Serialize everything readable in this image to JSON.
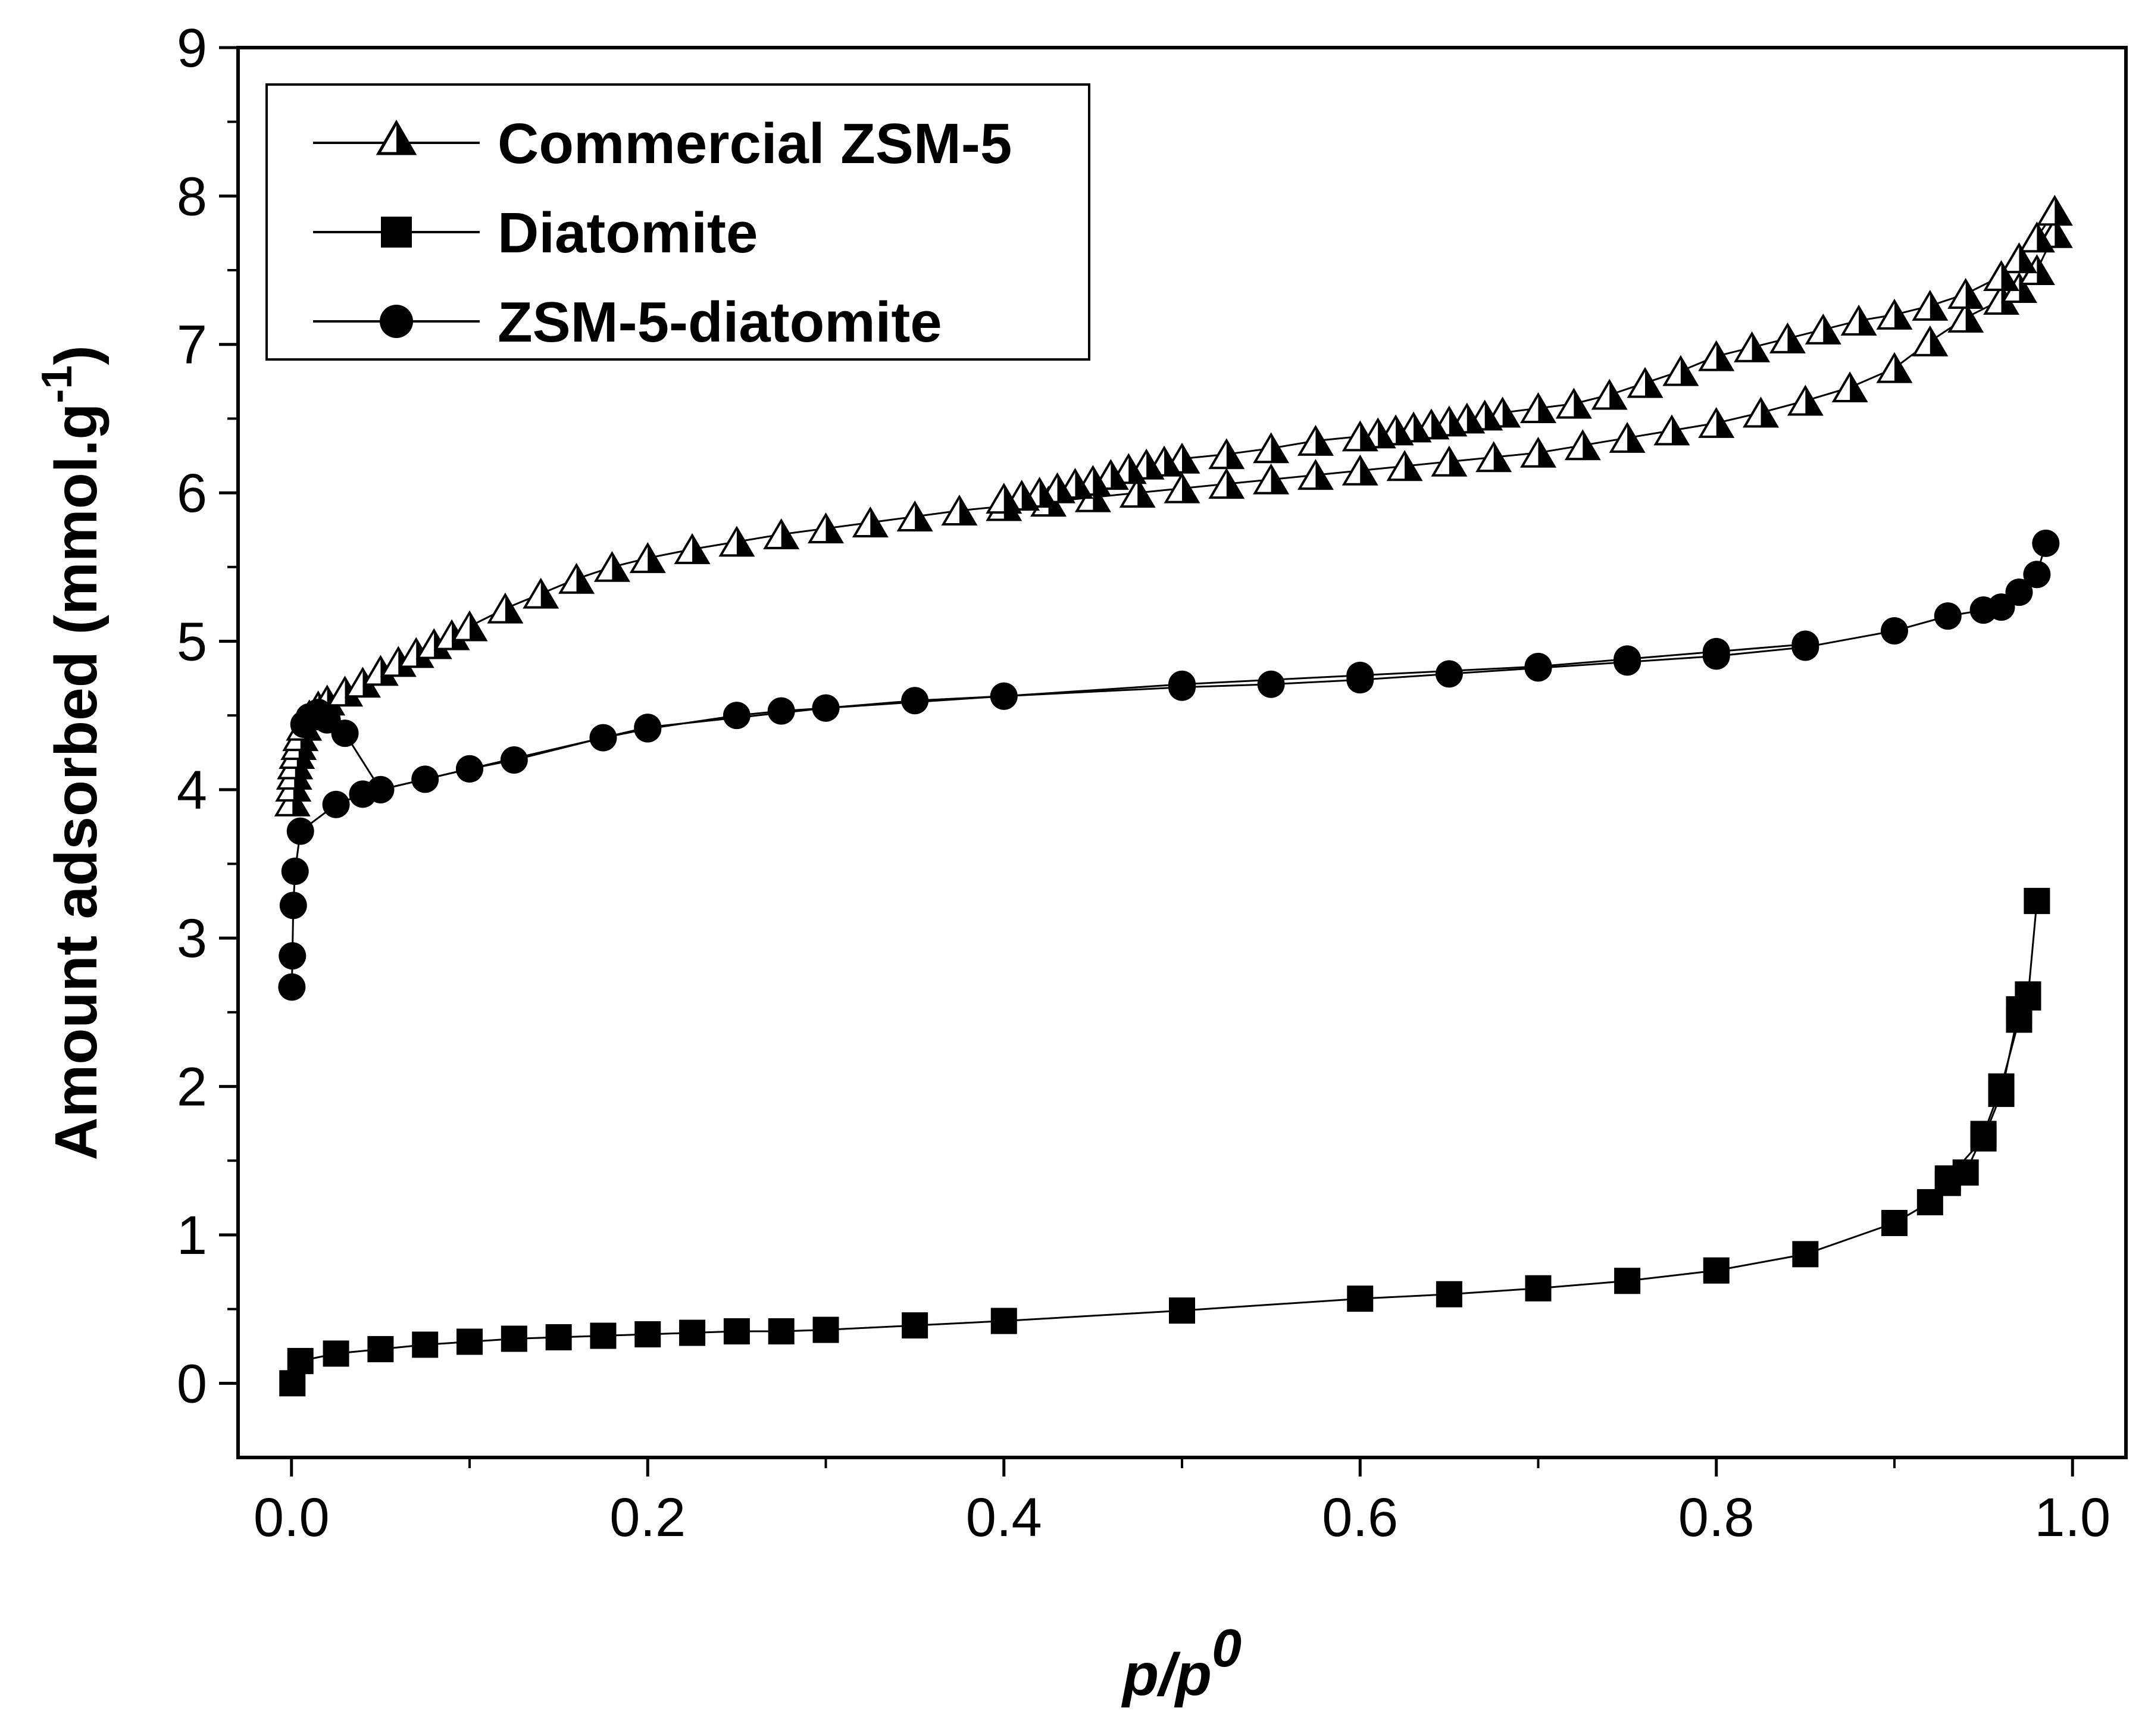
{
  "chart_data": {
    "type": "scatter",
    "title": "",
    "xlabel": "p/p",
    "xlabel_superscript": "0",
    "ylabel": "Amount adsorbed (mmol.g",
    "ylabel_superscript": "-1",
    "ylabel_close": ")",
    "xlim": [
      -0.03,
      1.03
    ],
    "ylim": [
      -0.5,
      9
    ],
    "xticks": [
      "0.0",
      "0.2",
      "0.4",
      "0.6",
      "0.8",
      "1.0"
    ],
    "xtick_values": [
      0.0,
      0.2,
      0.4,
      0.6,
      0.8,
      1.0
    ],
    "yticks": [
      "0",
      "1",
      "2",
      "3",
      "4",
      "5",
      "6",
      "7",
      "8",
      "9"
    ],
    "ytick_values": [
      0,
      1,
      2,
      3,
      4,
      5,
      6,
      7,
      8,
      9
    ],
    "grid": false,
    "legend_position": "top-left",
    "series": [
      {
        "name": "Commercial ZSM-5",
        "marker": "triangle",
        "fill": "half",
        "color": "#000000",
        "adsorption": {
          "x": [
            0.0005,
            0.001,
            0.0015,
            0.002,
            0.003,
            0.004,
            0.005,
            0.007,
            0.01,
            0.015,
            0.02,
            0.03,
            0.04,
            0.05,
            0.06,
            0.07,
            0.08,
            0.09,
            0.1,
            0.12,
            0.14,
            0.16,
            0.18,
            0.2,
            0.225,
            0.25,
            0.275,
            0.3,
            0.325,
            0.35,
            0.375,
            0.4,
            0.425,
            0.45,
            0.475,
            0.5,
            0.525,
            0.55,
            0.575,
            0.6,
            0.625,
            0.65,
            0.675,
            0.7,
            0.725,
            0.75,
            0.775,
            0.8,
            0.825,
            0.85,
            0.875,
            0.9,
            0.92,
            0.94,
            0.96,
            0.97,
            0.98,
            0.99
          ],
          "y": [
            3.92,
            4.02,
            4.1,
            4.17,
            4.24,
            4.3,
            4.36,
            4.43,
            4.5,
            4.56,
            4.6,
            4.66,
            4.72,
            4.8,
            4.86,
            4.92,
            4.98,
            5.04,
            5.1,
            5.22,
            5.32,
            5.42,
            5.5,
            5.56,
            5.62,
            5.67,
            5.72,
            5.76,
            5.8,
            5.84,
            5.88,
            5.91,
            5.94,
            5.97,
            6.0,
            6.03,
            6.06,
            6.09,
            6.12,
            6.15,
            6.18,
            6.21,
            6.24,
            6.27,
            6.32,
            6.37,
            6.42,
            6.47,
            6.54,
            6.62,
            6.71,
            6.84,
            7.02,
            7.18,
            7.3,
            7.38,
            7.5,
            7.75
          ]
        },
        "desorption": {
          "x": [
            0.99,
            0.98,
            0.97,
            0.96,
            0.94,
            0.92,
            0.9,
            0.88,
            0.86,
            0.84,
            0.82,
            0.8,
            0.78,
            0.76,
            0.74,
            0.72,
            0.7,
            0.68,
            0.67,
            0.66,
            0.65,
            0.64,
            0.63,
            0.62,
            0.61,
            0.6,
            0.575,
            0.55,
            0.525,
            0.5,
            0.49,
            0.48,
            0.47,
            0.46,
            0.45,
            0.44,
            0.43,
            0.42,
            0.41,
            0.4
          ],
          "y": [
            7.9,
            7.72,
            7.58,
            7.46,
            7.34,
            7.26,
            7.2,
            7.16,
            7.1,
            7.04,
            6.98,
            6.92,
            6.82,
            6.74,
            6.66,
            6.6,
            6.57,
            6.54,
            6.52,
            6.5,
            6.48,
            6.46,
            6.44,
            6.42,
            6.4,
            6.38,
            6.35,
            6.3,
            6.26,
            6.23,
            6.21,
            6.19,
            6.16,
            6.12,
            6.08,
            6.06,
            6.03,
            6.0,
            5.98,
            5.96
          ]
        }
      },
      {
        "name": "Diatomite",
        "marker": "square",
        "fill": "solid",
        "color": "#000000",
        "adsorption": {
          "x": [
            0.0005,
            0.005,
            0.025,
            0.05,
            0.075,
            0.1,
            0.125,
            0.15,
            0.175,
            0.2,
            0.225,
            0.25,
            0.275,
            0.3,
            0.35,
            0.4,
            0.5,
            0.6,
            0.65,
            0.7,
            0.75,
            0.8,
            0.85,
            0.9,
            0.92,
            0.93,
            0.94,
            0.95,
            0.96,
            0.97,
            0.975,
            0.98
          ],
          "y": [
            0.0,
            0.15,
            0.2,
            0.23,
            0.26,
            0.28,
            0.3,
            0.31,
            0.32,
            0.33,
            0.34,
            0.35,
            0.35,
            0.36,
            0.39,
            0.42,
            0.49,
            0.57,
            0.6,
            0.64,
            0.69,
            0.76,
            0.87,
            1.08,
            1.22,
            1.35,
            1.42,
            1.68,
            2.0,
            2.45,
            2.6,
            3.25
          ]
        },
        "desorption": {
          "x": [
            0.975,
            0.97,
            0.96,
            0.95,
            0.93
          ],
          "y": [
            2.62,
            2.52,
            1.95,
            1.65,
            1.38
          ]
        }
      },
      {
        "name": "ZSM-5-diatomite",
        "marker": "circle",
        "fill": "solid",
        "color": "#000000",
        "adsorption": {
          "x": [
            0.0002,
            0.0005,
            0.001,
            0.002,
            0.005,
            0.025,
            0.04,
            0.05,
            0.075,
            0.1,
            0.125,
            0.175,
            0.2,
            0.25,
            0.275,
            0.3,
            0.35,
            0.4,
            0.5,
            0.55,
            0.6,
            0.65,
            0.7,
            0.75,
            0.8,
            0.85,
            0.9,
            0.93,
            0.95,
            0.96,
            0.97,
            0.98,
            0.985
          ],
          "y": [
            2.67,
            2.88,
            3.22,
            3.45,
            3.72,
            3.9,
            3.97,
            4.0,
            4.07,
            4.14,
            4.2,
            4.35,
            4.41,
            4.5,
            4.53,
            4.55,
            4.6,
            4.63,
            4.69,
            4.71,
            4.74,
            4.78,
            4.82,
            4.86,
            4.9,
            4.96,
            5.07,
            5.17,
            5.21,
            5.23,
            5.33,
            5.45,
            5.66
          ]
        },
        "desorption": {
          "x": [
            0.85,
            0.8,
            0.75,
            0.7,
            0.6,
            0.5,
            0.4,
            0.3,
            0.2,
            0.1,
            0.05,
            0.03,
            0.02,
            0.015,
            0.01,
            0.007
          ],
          "y": [
            4.98,
            4.93,
            4.88,
            4.83,
            4.77,
            4.71,
            4.63,
            4.55,
            4.42,
            4.14,
            4.0,
            4.38,
            4.47,
            4.52,
            4.49,
            4.44
          ]
        }
      }
    ]
  }
}
